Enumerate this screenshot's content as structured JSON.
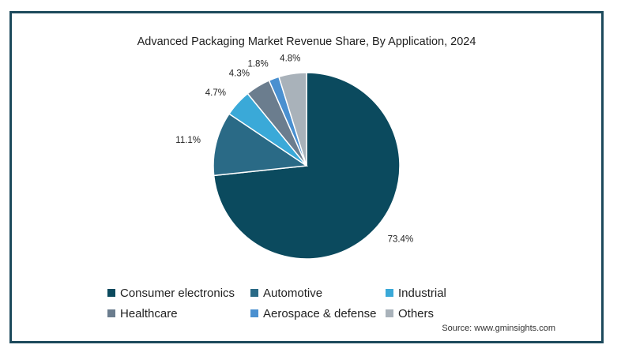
{
  "chart_data": {
    "type": "pie",
    "title": "Advanced Packaging Market Revenue Share, By Application, 2024",
    "series": [
      {
        "name": "Consumer electronics",
        "value": 73.4,
        "label": "73.4%",
        "color": "#0b4a5e"
      },
      {
        "name": "Automotive",
        "value": 11.1,
        "label": "11.1%",
        "color": "#2a6a86"
      },
      {
        "name": "Industrial",
        "value": 4.7,
        "label": "4.7%",
        "color": "#3aa9d8"
      },
      {
        "name": "Healthcare",
        "value": 4.3,
        "label": "4.3%",
        "color": "#6b7d8e"
      },
      {
        "name": "Aerospace & defense",
        "value": 1.8,
        "label": "1.8%",
        "color": "#4a90d0"
      },
      {
        "name": "Others",
        "value": 4.8,
        "label": "4.8%",
        "color": "#a9b2ba"
      }
    ],
    "start_angle": "12 o'clock",
    "direction": "clockwise",
    "legend_position": "bottom",
    "source": "Source: www.gminsights.com"
  }
}
